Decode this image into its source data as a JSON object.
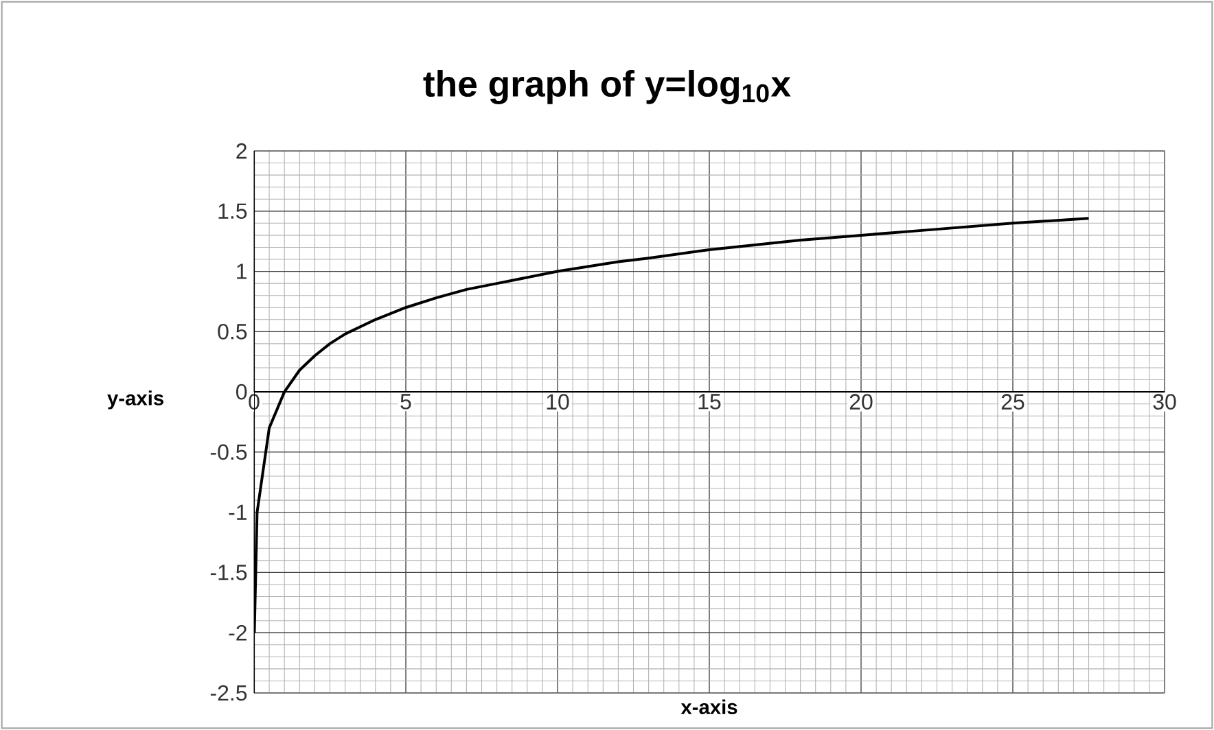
{
  "chart_data": {
    "type": "line",
    "title": "**the graph of y=log$_{10}$x**",
    "xlabel": "x-axis",
    "ylabel": "y-axis",
    "x": [
      0.01,
      0.1,
      0.5,
      1,
      1.5,
      2,
      2.5,
      3,
      4,
      5,
      6,
      7,
      8,
      10,
      12,
      13,
      15,
      18,
      20,
      22,
      25,
      27.5
    ],
    "series": [
      {
        "color": "#000000",
        "values": [
          -2,
          -1,
          -0.3,
          0,
          0.18,
          0.3,
          0.4,
          0.48,
          0.6,
          0.7,
          0.78,
          0.85,
          0.9,
          1,
          1.08,
          1.11,
          1.18,
          1.26,
          1.3,
          1.34,
          1.4,
          1.44
        ]
      }
    ],
    "xlim": [
      0,
      30
    ],
    "xticks": [
      0,
      5,
      10,
      15,
      20,
      25,
      30
    ],
    "ylim": [
      -2.5,
      2
    ],
    "yticks": [
      -2.5,
      -2,
      -1.5,
      -1,
      -0.5,
      0,
      0.5,
      1,
      1.5,
      2
    ],
    "grid": true,
    "marker": "none",
    "line_style": "solid"
  }
}
